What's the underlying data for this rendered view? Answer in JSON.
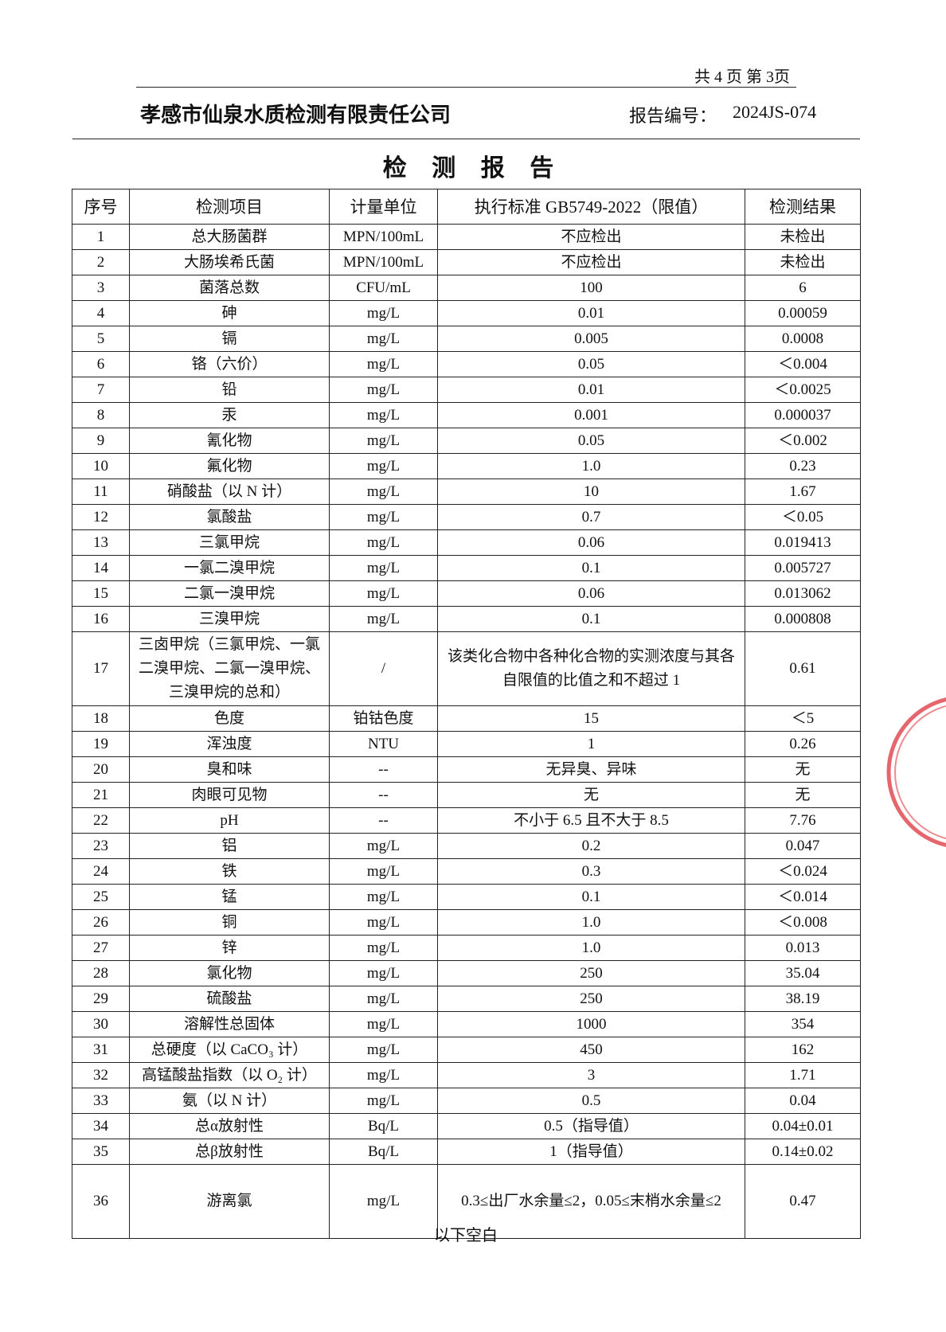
{
  "page_number": "共 4 页  第 3页",
  "header": {
    "company": "孝感市仙泉水质检测有限责任公司",
    "report_no_label": "报告编号：",
    "report_no": "2024JS-074"
  },
  "title": "检 测 报 告",
  "table": {
    "columns": [
      "序号",
      "检测项目",
      "计量单位",
      "执行标准 GB5749-2022（限值）",
      "检测结果"
    ],
    "rows": [
      [
        "1",
        "总大肠菌群",
        "MPN/100mL",
        "不应检出",
        "未检出"
      ],
      [
        "2",
        "大肠埃希氏菌",
        "MPN/100mL",
        "不应检出",
        "未检出"
      ],
      [
        "3",
        "菌落总数",
        "CFU/mL",
        "100",
        "6"
      ],
      [
        "4",
        "砷",
        "mg/L",
        "0.01",
        "0.00059"
      ],
      [
        "5",
        "镉",
        "mg/L",
        "0.005",
        "0.0008"
      ],
      [
        "6",
        "铬（六价）",
        "mg/L",
        "0.05",
        "＜0.004"
      ],
      [
        "7",
        "铅",
        "mg/L",
        "0.01",
        "＜0.0025"
      ],
      [
        "8",
        "汞",
        "mg/L",
        "0.001",
        "0.000037"
      ],
      [
        "9",
        "氰化物",
        "mg/L",
        "0.05",
        "＜0.002"
      ],
      [
        "10",
        "氟化物",
        "mg/L",
        "1.0",
        "0.23"
      ],
      [
        "11",
        "硝酸盐（以 N 计）",
        "mg/L",
        "10",
        "1.67"
      ],
      [
        "12",
        "氯酸盐",
        "mg/L",
        "0.7",
        "＜0.05"
      ],
      [
        "13",
        "三氯甲烷",
        "mg/L",
        "0.06",
        "0.019413"
      ],
      [
        "14",
        "一氯二溴甲烷",
        "mg/L",
        "0.1",
        "0.005727"
      ],
      [
        "15",
        "二氯一溴甲烷",
        "mg/L",
        "0.06",
        "0.013062"
      ],
      [
        "16",
        "三溴甲烷",
        "mg/L",
        "0.1",
        "0.000808"
      ],
      [
        "17",
        "三卤甲烷（三氯甲烷、一氯二溴甲烷、二氯一溴甲烷、三溴甲烷的总和）",
        "/",
        "该类化合物中各种化合物的实测浓度与其各自限值的比值之和不超过 1",
        "0.61"
      ],
      [
        "18",
        "色度",
        "铂钴色度",
        "15",
        "＜5"
      ],
      [
        "19",
        "浑浊度",
        "NTU",
        "1",
        "0.26"
      ],
      [
        "20",
        "臭和味",
        "--",
        "无异臭、异味",
        "无"
      ],
      [
        "21",
        "肉眼可见物",
        "--",
        "无",
        "无"
      ],
      [
        "22",
        "pH",
        "--",
        "不小于 6.5 且不大于 8.5",
        "7.76"
      ],
      [
        "23",
        "铝",
        "mg/L",
        "0.2",
        "0.047"
      ],
      [
        "24",
        "铁",
        "mg/L",
        "0.3",
        "＜0.024"
      ],
      [
        "25",
        "锰",
        "mg/L",
        "0.1",
        "＜0.014"
      ],
      [
        "26",
        "铜",
        "mg/L",
        "1.0",
        "＜0.008"
      ],
      [
        "27",
        "锌",
        "mg/L",
        "1.0",
        "0.013"
      ],
      [
        "28",
        "氯化物",
        "mg/L",
        "250",
        "35.04"
      ],
      [
        "29",
        "硫酸盐",
        "mg/L",
        "250",
        "38.19"
      ],
      [
        "30",
        "溶解性总固体",
        "mg/L",
        "1000",
        "354"
      ],
      [
        "31",
        "总硬度（以 CaCO₃ 计）",
        "mg/L",
        "450",
        "162"
      ],
      [
        "32",
        "高锰酸盐指数（以 O₂ 计）",
        "mg/L",
        "3",
        "1.71"
      ],
      [
        "33",
        "氨（以 N 计）",
        "mg/L",
        "0.5",
        "0.04"
      ],
      [
        "34",
        "总α放射性",
        "Bq/L",
        "0.5（指导值）",
        "0.04±0.01"
      ],
      [
        "35",
        "总β放射性",
        "Bq/L",
        "1（指导值）",
        "0.14±0.02"
      ],
      [
        "36",
        "游离氯",
        "mg/L",
        "0.3≤出厂水余量≤2，0.05≤末梢水余量≤2",
        "0.47"
      ]
    ]
  },
  "footer": "以下空白"
}
